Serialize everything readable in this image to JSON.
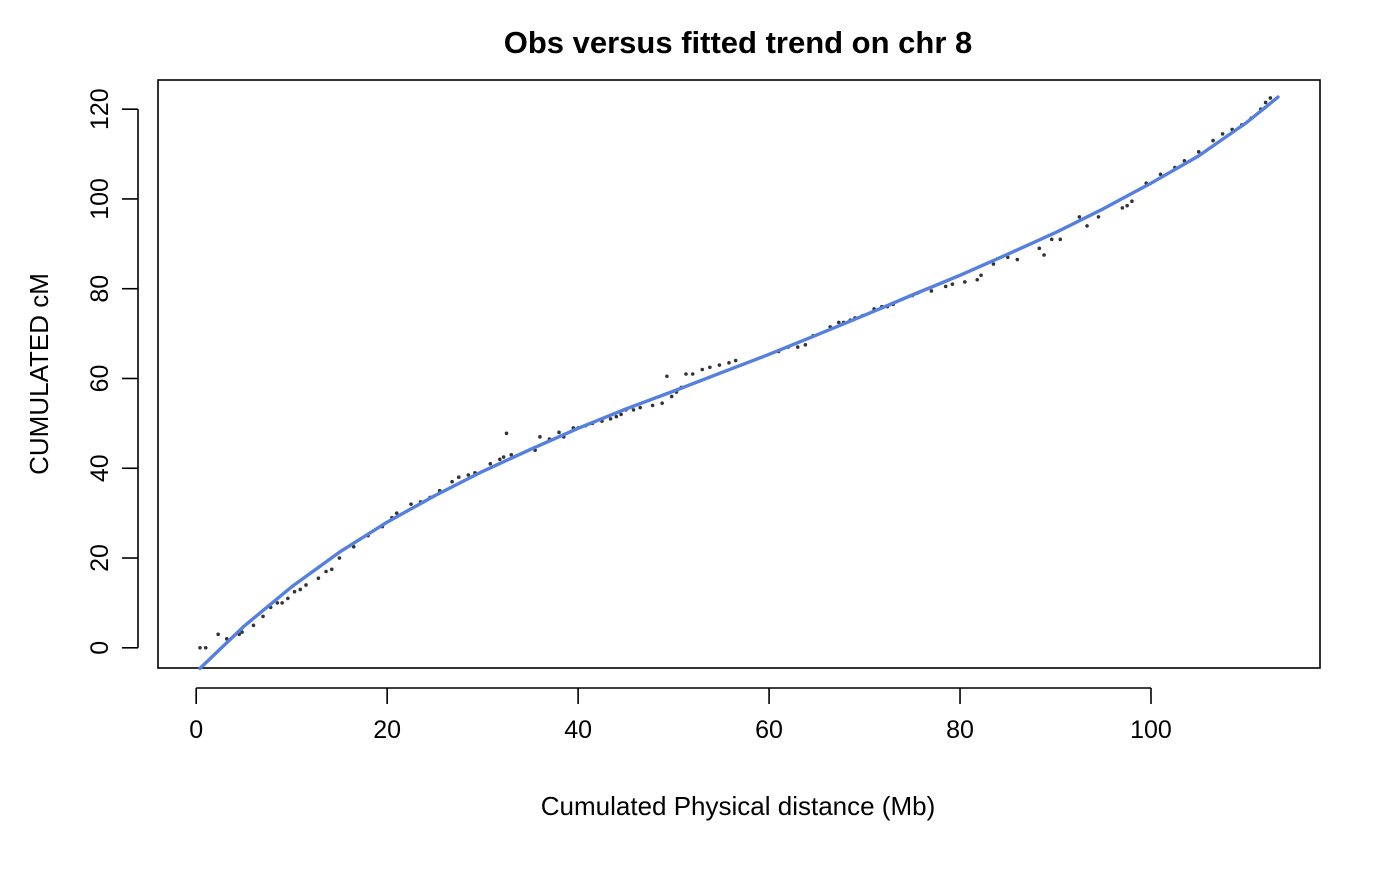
{
  "chart_data": {
    "type": "scatter",
    "title": "Obs versus fitted trend on chr  8",
    "xlabel": "Cumulated Physical distance (Mb)",
    "ylabel": "CUMULATED cM",
    "xlim": [
      -4.0,
      117.7
    ],
    "ylim": [
      -4.5,
      126.5
    ],
    "xticks": [
      0,
      20,
      40,
      60,
      80,
      100
    ],
    "yticks": [
      0,
      20,
      40,
      60,
      80,
      100,
      120
    ],
    "grid": false,
    "legend": "none",
    "colors": {
      "points": "#333333",
      "fit_line": "#5580e0",
      "frame": "#000000"
    },
    "series": [
      {
        "kind": "points",
        "points": [
          [
            0.4,
            0.0
          ],
          [
            1.0,
            0.0
          ],
          [
            2.3,
            3.0
          ],
          [
            3.2,
            2.0
          ],
          [
            4.5,
            3.0
          ],
          [
            4.8,
            3.5
          ],
          [
            6.0,
            5.0
          ],
          [
            7.0,
            7.0
          ],
          [
            7.8,
            9.0
          ],
          [
            8.5,
            10.0
          ],
          [
            9.0,
            10.0
          ],
          [
            9.6,
            11.0
          ],
          [
            10.3,
            12.5
          ],
          [
            10.9,
            13.0
          ],
          [
            11.5,
            14.0
          ],
          [
            12.8,
            15.5
          ],
          [
            13.6,
            17.0
          ],
          [
            14.2,
            17.5
          ],
          [
            15.0,
            20.0
          ],
          [
            16.5,
            22.5
          ],
          [
            18.0,
            25.0
          ],
          [
            19.5,
            27.0
          ],
          [
            20.5,
            29.0
          ],
          [
            21.0,
            30.0
          ],
          [
            22.5,
            32.0
          ],
          [
            23.5,
            32.5
          ],
          [
            24.5,
            33.5
          ],
          [
            25.5,
            35.0
          ],
          [
            26.8,
            37.0
          ],
          [
            27.5,
            38.0
          ],
          [
            28.5,
            38.5
          ],
          [
            29.2,
            39.0
          ],
          [
            30.8,
            41.0
          ],
          [
            31.8,
            42.0
          ],
          [
            32.2,
            42.5
          ],
          [
            32.5,
            47.8
          ],
          [
            33.0,
            43.0
          ],
          [
            35.5,
            44.0
          ],
          [
            36.0,
            47.0
          ],
          [
            37.0,
            46.5
          ],
          [
            38.0,
            48.0
          ],
          [
            38.5,
            47.0
          ],
          [
            39.5,
            49.0
          ],
          [
            40.0,
            49.0
          ],
          [
            40.8,
            49.5
          ],
          [
            41.5,
            50.0
          ],
          [
            42.5,
            50.5
          ],
          [
            43.4,
            51.0
          ],
          [
            44.0,
            51.5
          ],
          [
            44.5,
            52.0
          ],
          [
            45.0,
            53.0
          ],
          [
            45.8,
            53.0
          ],
          [
            46.5,
            53.5
          ],
          [
            47.8,
            54.0
          ],
          [
            48.8,
            54.5
          ],
          [
            49.3,
            60.5
          ],
          [
            49.8,
            56.0
          ],
          [
            50.3,
            57.0
          ],
          [
            50.8,
            58.0
          ],
          [
            51.3,
            61.0
          ],
          [
            52.0,
            61.0
          ],
          [
            53.0,
            62.0
          ],
          [
            53.8,
            62.5
          ],
          [
            54.8,
            63.0
          ],
          [
            55.8,
            63.5
          ],
          [
            56.5,
            64.0
          ],
          [
            61.0,
            66.0
          ],
          [
            62.0,
            67.0
          ],
          [
            63.0,
            67.0
          ],
          [
            63.8,
            67.5
          ],
          [
            64.6,
            69.5
          ],
          [
            66.4,
            71.5
          ],
          [
            67.3,
            72.5
          ],
          [
            67.8,
            72.5
          ],
          [
            68.5,
            73.0
          ],
          [
            69.0,
            73.5
          ],
          [
            69.8,
            74.0
          ],
          [
            71.0,
            75.5
          ],
          [
            71.8,
            76.0
          ],
          [
            72.4,
            76.0
          ],
          [
            73.0,
            76.5
          ],
          [
            75.0,
            78.5
          ],
          [
            75.5,
            79.0
          ],
          [
            77.0,
            79.5
          ],
          [
            78.5,
            80.5
          ],
          [
            79.2,
            81.0
          ],
          [
            80.5,
            81.5
          ],
          [
            81.8,
            82.0
          ],
          [
            82.2,
            83.0
          ],
          [
            83.5,
            85.5
          ],
          [
            85.0,
            87.0
          ],
          [
            86.0,
            86.5
          ],
          [
            88.3,
            89.0
          ],
          [
            88.8,
            87.5
          ],
          [
            89.6,
            91.0
          ],
          [
            90.5,
            91.0
          ],
          [
            92.5,
            96.0
          ],
          [
            93.3,
            94.0
          ],
          [
            94.5,
            96.0
          ],
          [
            97.0,
            98.0
          ],
          [
            97.5,
            98.5
          ],
          [
            98.0,
            99.5
          ],
          [
            99.5,
            103.5
          ],
          [
            101.0,
            105.5
          ],
          [
            102.5,
            107.0
          ],
          [
            103.5,
            108.5
          ],
          [
            105.0,
            110.5
          ],
          [
            106.5,
            113.0
          ],
          [
            107.5,
            114.5
          ],
          [
            108.5,
            115.5
          ],
          [
            109.5,
            116.5
          ],
          [
            110.5,
            118.0
          ],
          [
            111.5,
            120.0
          ],
          [
            112.0,
            121.5
          ],
          [
            112.5,
            122.5
          ]
        ]
      },
      {
        "kind": "fitted-trend",
        "points": [
          [
            0.4,
            -4.6
          ],
          [
            5,
            4.8
          ],
          [
            10,
            13.6
          ],
          [
            15,
            21.3
          ],
          [
            20,
            28.0
          ],
          [
            25,
            33.9
          ],
          [
            30,
            39.3
          ],
          [
            35,
            44.2
          ],
          [
            40,
            48.9
          ],
          [
            45,
            53.2
          ],
          [
            50,
            57.2
          ],
          [
            55,
            61.3
          ],
          [
            60,
            65.4
          ],
          [
            65,
            69.7
          ],
          [
            70,
            74.1
          ],
          [
            75,
            78.6
          ],
          [
            80,
            83.0
          ],
          [
            85,
            87.7
          ],
          [
            90,
            92.5
          ],
          [
            95,
            97.8
          ],
          [
            100,
            103.5
          ],
          [
            105,
            109.6
          ],
          [
            110,
            117.0
          ],
          [
            113.3,
            122.7
          ]
        ]
      }
    ]
  }
}
